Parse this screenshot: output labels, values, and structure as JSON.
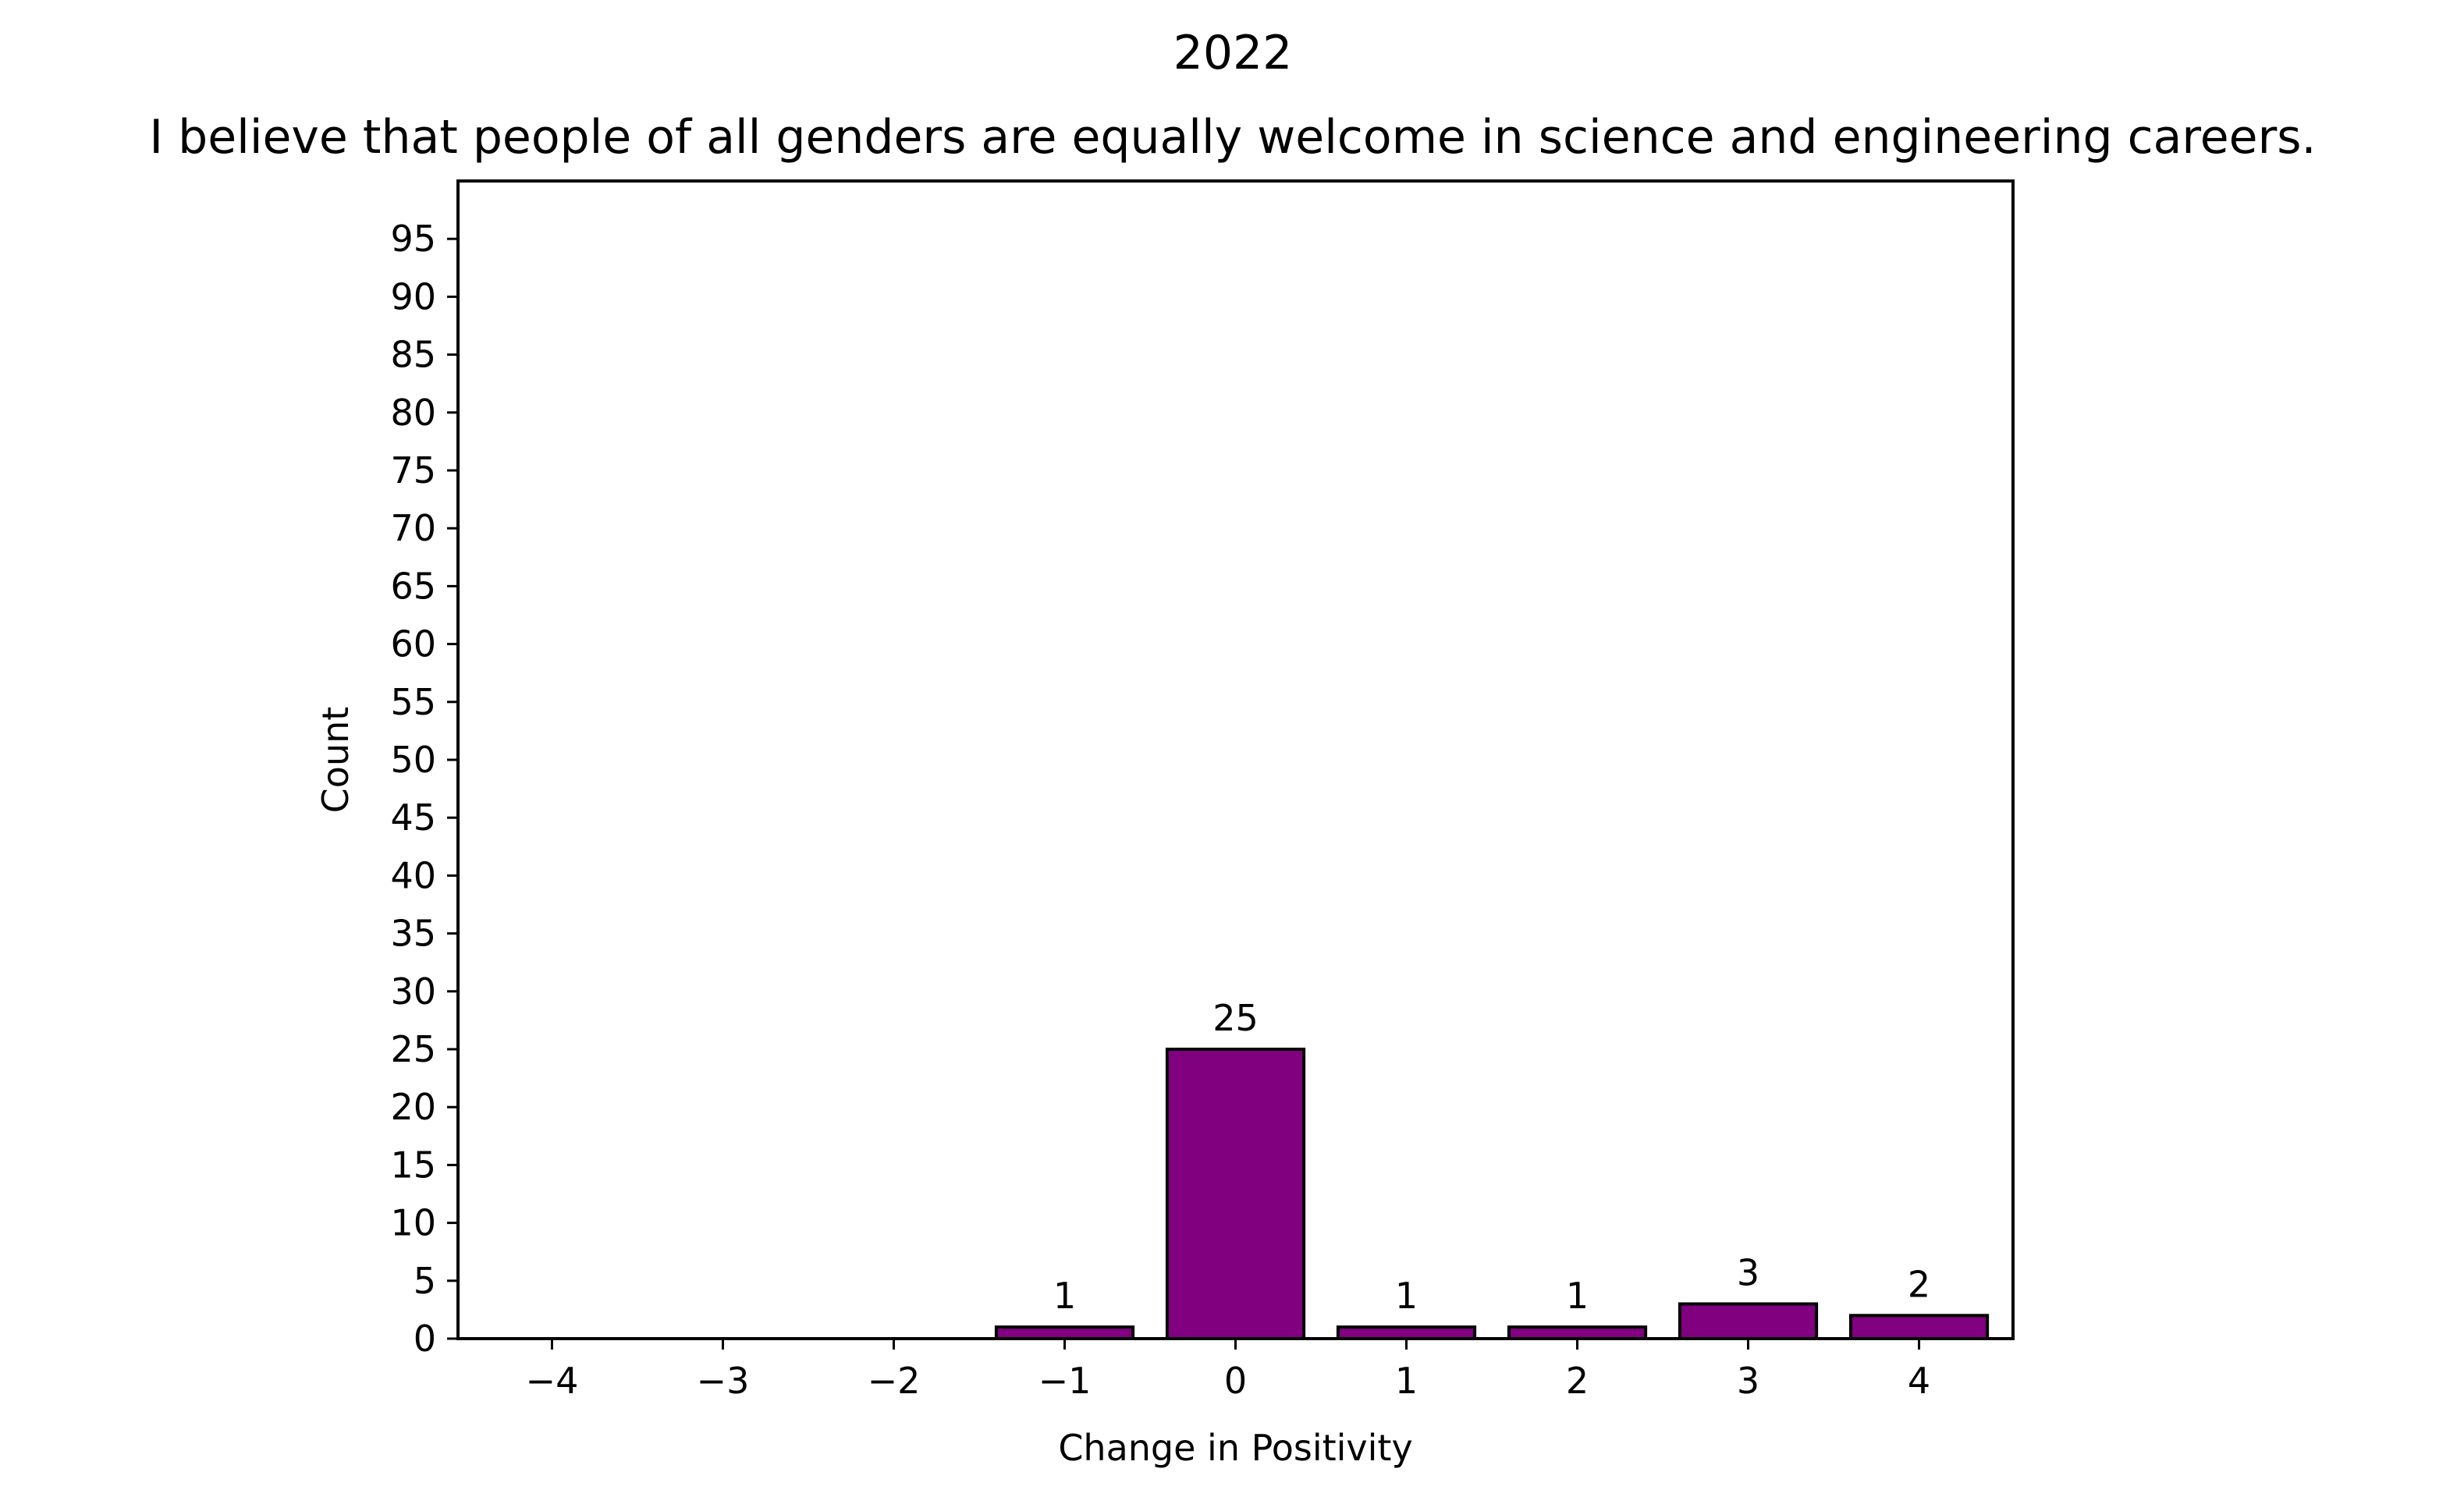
{
  "chart_data": {
    "type": "bar",
    "suptitle": "2022",
    "title": "I believe that people of all genders are equally welcome in science and engineering careers.",
    "xlabel": "Change in Positivity",
    "ylabel": "Count",
    "categories": [
      -4,
      -3,
      -2,
      -1,
      0,
      1,
      2,
      3,
      4
    ],
    "x_tick_labels": [
      "−4",
      "−3",
      "−2",
      "−1",
      "0",
      "1",
      "2",
      "3",
      "4"
    ],
    "values": [
      0,
      0,
      0,
      1,
      25,
      1,
      1,
      3,
      2
    ],
    "data_labels": [
      "",
      "",
      "",
      "1",
      "25",
      "1",
      "1",
      "3",
      "2"
    ],
    "xlim": [
      -4.55,
      4.55
    ],
    "ylim": [
      0,
      100
    ],
    "y_ticks": [
      0,
      5,
      10,
      15,
      20,
      25,
      30,
      35,
      40,
      45,
      50,
      55,
      60,
      65,
      70,
      75,
      80,
      85,
      90,
      95
    ],
    "bar_color": "#800080",
    "bar_edge_color": "#000000",
    "grid": false,
    "legend": "none"
  }
}
